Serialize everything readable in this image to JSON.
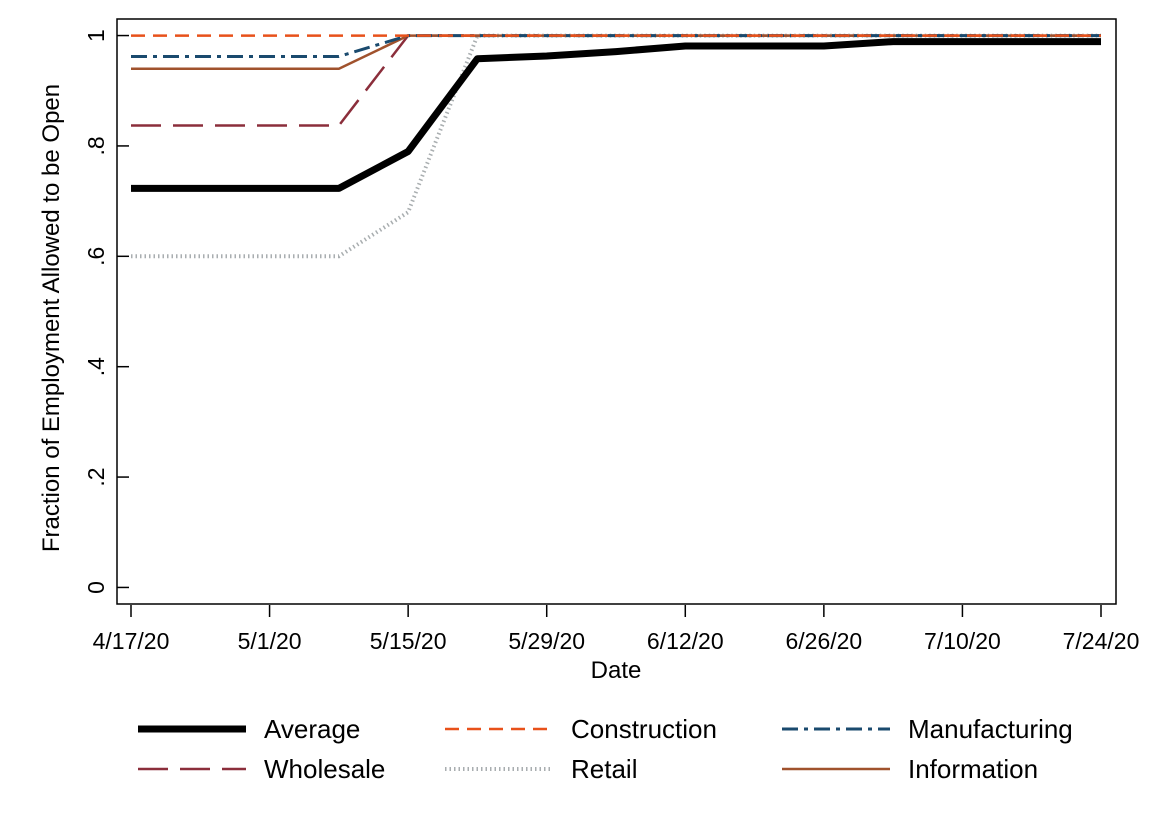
{
  "chart_data": {
    "type": "line",
    "xlabel": "Date",
    "ylabel": "Fraction of Employment Allowed to be Open",
    "x": [
      "4/17/20",
      "4/24/20",
      "5/1/20",
      "5/8/20",
      "5/15/20",
      "5/22/20",
      "5/29/20",
      "6/5/20",
      "6/12/20",
      "6/19/20",
      "6/26/20",
      "7/3/20",
      "7/10/20",
      "7/17/20",
      "7/24/20"
    ],
    "x_ticks": [
      "4/17/20",
      "5/1/20",
      "5/15/20",
      "5/29/20",
      "6/12/20",
      "6/26/20",
      "7/10/20",
      "7/24/20"
    ],
    "x_tick_index": [
      0,
      2,
      4,
      6,
      8,
      10,
      12,
      14
    ],
    "y_ticks": [
      0,
      0.2,
      0.4,
      0.6,
      0.8,
      1
    ],
    "y_tick_labels": [
      "0",
      ".2",
      ".4",
      ".6",
      ".8",
      "1"
    ],
    "ylim": [
      -0.03,
      1.03
    ],
    "grid": false,
    "legend_position": "bottom",
    "series": [
      {
        "name": "Average",
        "color": "#000000",
        "style": "solid-thick",
        "values": [
          0.723,
          0.723,
          0.723,
          0.723,
          0.79,
          0.958,
          0.963,
          0.971,
          0.981,
          0.981,
          0.981,
          0.989,
          0.989,
          0.989,
          0.989
        ]
      },
      {
        "name": "Construction",
        "color": "#e8511a",
        "style": "dash",
        "values": [
          1,
          1,
          1,
          1,
          1,
          1,
          1,
          1,
          1,
          1,
          1,
          1,
          1,
          1,
          1
        ]
      },
      {
        "name": "Manufacturing",
        "color": "#1a4a6e",
        "style": "dash-dot",
        "values": [
          0.962,
          0.962,
          0.962,
          0.962,
          1,
          1,
          1,
          1,
          1,
          1,
          1,
          1,
          1,
          1,
          1
        ]
      },
      {
        "name": "Wholesale",
        "color": "#8b2e3b",
        "style": "long-dash",
        "values": [
          0.837,
          0.837,
          0.837,
          0.837,
          1,
          1,
          1,
          1,
          1,
          1,
          1,
          1,
          1,
          1,
          1
        ]
      },
      {
        "name": "Retail",
        "color": "#a9aeb0",
        "style": "dotted",
        "values": [
          0.6,
          0.6,
          0.6,
          0.6,
          0.68,
          1,
          1,
          1,
          1,
          1,
          1,
          1,
          1,
          1,
          1
        ]
      },
      {
        "name": "Information",
        "color": "#a0522d",
        "style": "solid-thin",
        "values": [
          0.94,
          0.94,
          0.94,
          0.94,
          1,
          1,
          1,
          1,
          1,
          1,
          1,
          1,
          1,
          1,
          1
        ]
      }
    ]
  }
}
